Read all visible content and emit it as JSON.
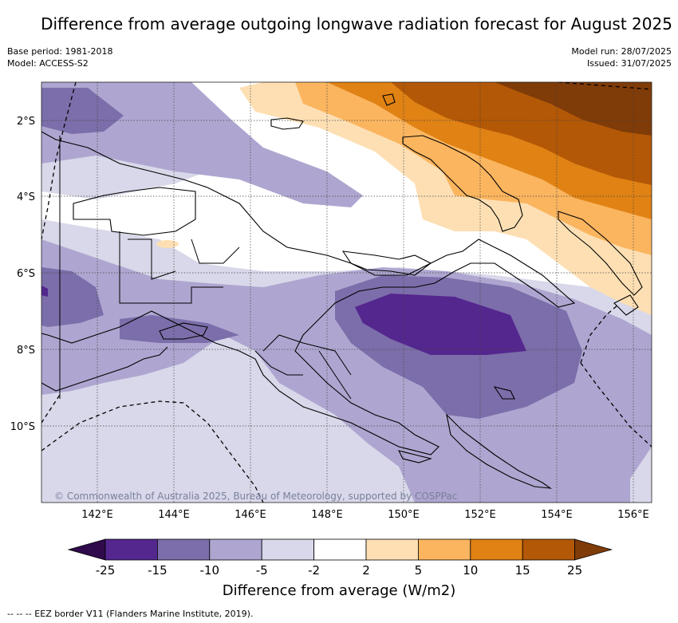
{
  "title": "Difference from average outgoing longwave radiation forecast for August 2025",
  "base_period": "Base period: 1981-2018",
  "model": "Model: ACCESS-S2",
  "model_run": "Model run: 28/07/2025",
  "issued": "Issued: 31/07/2025",
  "credit": "© Commonwealth of Australia 2025, Bureau of Meteorology, supported by COSPPac",
  "eez_note": "-- -- -- EEZ border V11 (Flanders Marine Institute, 2019).",
  "colorbar": {
    "label": "Difference from average (W/m2)",
    "ticks": [
      "-25",
      "-15",
      "-10",
      "-5",
      "-2",
      "2",
      "5",
      "10",
      "15",
      "25"
    ],
    "colors": {
      "under": "#2f0b4b",
      "bins": [
        "#54278f",
        "#7c6eaa",
        "#aea6d0",
        "#d8d8ea",
        "#ffffff",
        "#fddfb3",
        "#fbb55f",
        "#e08214",
        "#b35806"
      ],
      "over": "#7f3b08"
    }
  },
  "axes": {
    "lon_labels": [
      "142°E",
      "144°E",
      "146°E",
      "148°E",
      "150°E",
      "152°E",
      "154°E",
      "156°E"
    ],
    "lat_labels": [
      "2°S",
      "4°S",
      "6°S",
      "8°S",
      "10°S"
    ]
  }
}
